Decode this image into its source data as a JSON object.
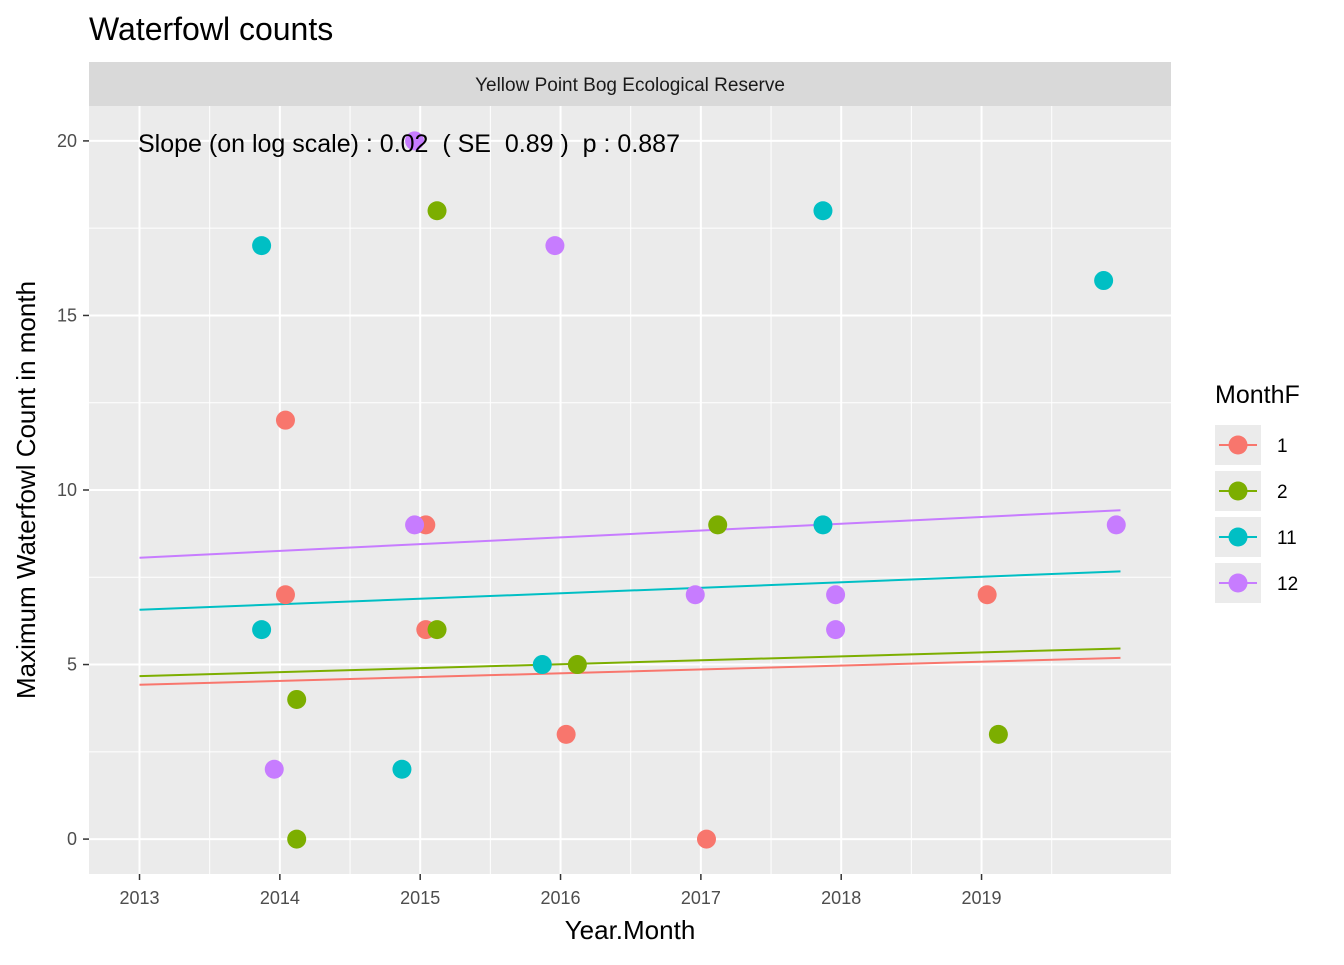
{
  "chart_data": {
    "type": "scatter",
    "title": "Waterfowl counts",
    "facet_label": "Yellow Point Bog Ecological Reserve",
    "xlabel": "Year.Month",
    "ylabel": "Maximum Waterfowl Count in month",
    "xlim": [
      2012.64,
      2020.35
    ],
    "ylim": [
      -1,
      21
    ],
    "x_ticks": [
      2013,
      2014,
      2015,
      2016,
      2017,
      2018,
      2019
    ],
    "x_tick_labels": [
      "2013",
      "2014",
      "2015",
      "2016",
      "2017",
      "2018",
      "2019"
    ],
    "y_ticks": [
      0,
      5,
      10,
      15,
      20
    ],
    "y_tick_labels": [
      "0",
      "5",
      "10",
      "15",
      "20"
    ],
    "grid": true,
    "annotation": "Slope (on log scale) : 0.02  ( SE  0.89 )  p : 0.887",
    "legend": {
      "title": "MonthF",
      "position": "right"
    },
    "series": [
      {
        "name": "1",
        "color": "#F8766D",
        "points": [
          [
            2014.04,
            12
          ],
          [
            2014.04,
            7
          ],
          [
            2015.04,
            9
          ],
          [
            2015.04,
            6
          ],
          [
            2016.04,
            3
          ],
          [
            2017.04,
            0
          ],
          [
            2019.04,
            7
          ]
        ],
        "trend": [
          [
            2013.0,
            4.42
          ],
          [
            2019.99,
            5.19
          ]
        ]
      },
      {
        "name": "2",
        "color": "#7CAE00",
        "points": [
          [
            2014.12,
            4
          ],
          [
            2014.12,
            0
          ],
          [
            2015.12,
            18
          ],
          [
            2015.12,
            6
          ],
          [
            2016.12,
            5
          ],
          [
            2017.12,
            9
          ],
          [
            2019.12,
            3
          ]
        ],
        "trend": [
          [
            2013.0,
            4.67
          ],
          [
            2019.99,
            5.46
          ]
        ]
      },
      {
        "name": "11",
        "color": "#00BFC4",
        "points": [
          [
            2013.87,
            17
          ],
          [
            2013.87,
            6
          ],
          [
            2014.87,
            2
          ],
          [
            2015.87,
            5
          ],
          [
            2017.87,
            18
          ],
          [
            2017.87,
            9
          ],
          [
            2019.87,
            16
          ]
        ],
        "trend": [
          [
            2013.0,
            6.57
          ],
          [
            2019.99,
            7.67
          ]
        ]
      },
      {
        "name": "12",
        "color": "#C77CFF",
        "points": [
          [
            2013.96,
            2
          ],
          [
            2014.96,
            20
          ],
          [
            2014.96,
            9
          ],
          [
            2015.96,
            17
          ],
          [
            2016.96,
            7
          ],
          [
            2017.96,
            7
          ],
          [
            2017.96,
            6
          ],
          [
            2019.96,
            9
          ]
        ],
        "trend": [
          [
            2013.0,
            8.06
          ],
          [
            2019.99,
            9.42
          ]
        ]
      }
    ]
  }
}
